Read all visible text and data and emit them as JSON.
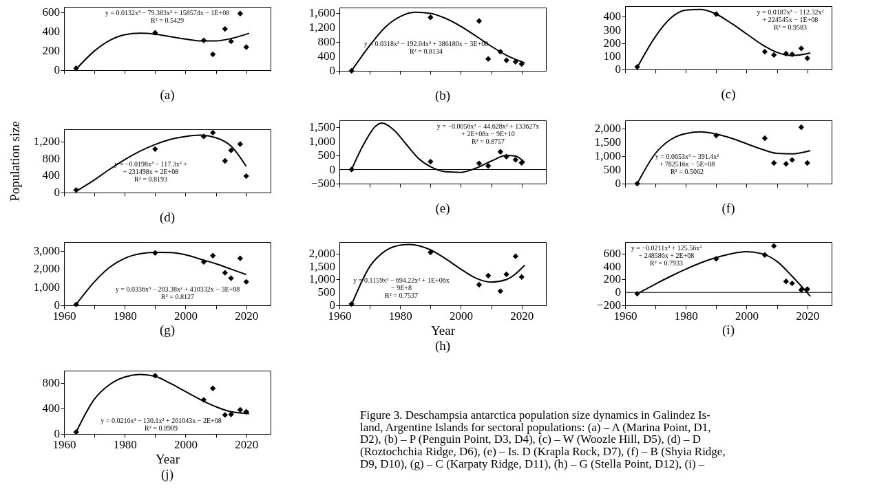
{
  "chart_data": [
    {
      "type": "scatter",
      "title": "(a)",
      "xlim": [
        1960,
        2028
      ],
      "xticks": [
        1960,
        {
          "value": 1970,
          "label": null
        },
        1980,
        {
          "value": 1990,
          "label": null
        },
        2000,
        {
          "value": 2010,
          "label": null
        },
        2020
      ],
      "ylim": [
        0,
        660
      ],
      "yticks": [
        0,
        200,
        400,
        600
      ],
      "tick_labels": "y",
      "annotations": [
        "y = 0.0132x³ − 79.383x² + 158574x − 1E+08",
        "R² = 0.5429"
      ],
      "series": [
        {
          "type": "scatter",
          "marker": "diamond",
          "color": "#000000",
          "x": [
            1964,
            1990,
            2006,
            2009,
            2013,
            2015,
            2018,
            2020
          ],
          "values": [
            20,
            390,
            310,
            165,
            430,
            300,
            590,
            240
          ]
        },
        {
          "type": "line",
          "marker": "none",
          "color": "#000000",
          "x": [
            1964,
            1970,
            1975,
            1980,
            1985,
            1990,
            1995,
            2000,
            2005,
            2010,
            2015,
            2021
          ],
          "values": [
            10,
            200,
            310,
            370,
            385,
            375,
            350,
            325,
            305,
            305,
            330,
            385
          ]
        }
      ]
    },
    {
      "type": "scatter",
      "title": "(b)",
      "xlim": [
        1960,
        2028
      ],
      "xticks": [
        1960,
        {
          "value": 1970,
          "label": null
        },
        1980,
        {
          "value": 1990,
          "label": null
        },
        2000,
        {
          "value": 2010,
          "label": null
        },
        2020
      ],
      "ylim": [
        0,
        1750
      ],
      "yticks": [
        0,
        400,
        800,
        {
          "value": 1200,
          "label": "1,200"
        },
        {
          "value": 1600,
          "label": "1,600"
        }
      ],
      "tick_labels": "y",
      "annotations": [
        "y = 0.0318x³ − 192.04x² + 386180x − 3E+08",
        "R² = 0.8134"
      ],
      "series": [
        {
          "type": "scatter",
          "marker": "diamond",
          "color": "#000000",
          "x": [
            1964,
            1990,
            2006,
            2009,
            2013,
            2015,
            2018,
            2020
          ],
          "values": [
            0,
            1480,
            1380,
            330,
            530,
            290,
            250,
            190
          ]
        },
        {
          "type": "line",
          "marker": "none",
          "color": "#000000",
          "x": [
            1964,
            1970,
            1975,
            1980,
            1985,
            1990,
            1995,
            2000,
            2005,
            2010,
            2015,
            2021
          ],
          "values": [
            0,
            700,
            1200,
            1500,
            1620,
            1590,
            1450,
            1230,
            960,
            680,
            430,
            220
          ]
        }
      ]
    },
    {
      "type": "scatter",
      "title": "(c)",
      "xlim": [
        1960,
        2028
      ],
      "xticks": [
        1960,
        {
          "value": 1970,
          "label": null
        },
        1980,
        {
          "value": 1990,
          "label": null
        },
        2000,
        {
          "value": 2010,
          "label": null
        },
        2020
      ],
      "ylim": [
        0,
        480
      ],
      "yticks": [
        0,
        100,
        200,
        300,
        400
      ],
      "tick_labels": "y",
      "annotations": [
        "y = 0.0187x³ − 112.32x²",
        "+ 224545x − 1E+08",
        "R² = 0.9583"
      ],
      "series": [
        {
          "type": "scatter",
          "marker": "diamond",
          "color": "#000000",
          "x": [
            1964,
            1990,
            2006,
            2009,
            2013,
            2015,
            2018,
            2020
          ],
          "values": [
            20,
            420,
            135,
            110,
            120,
            115,
            160,
            85
          ]
        },
        {
          "type": "line",
          "marker": "none",
          "color": "#000000",
          "x": [
            1964,
            1970,
            1975,
            1980,
            1985,
            1990,
            1995,
            2000,
            2005,
            2010,
            2015,
            2021
          ],
          "values": [
            15,
            250,
            390,
            450,
            455,
            420,
            350,
            270,
            190,
            130,
            105,
            125
          ]
        }
      ]
    },
    {
      "type": "scatter",
      "title": "(d)",
      "ylabel": "Population size",
      "xlim": [
        1960,
        2028
      ],
      "xticks": [
        1960,
        {
          "value": 1970,
          "label": null
        },
        1980,
        {
          "value": 1990,
          "label": null
        },
        2000,
        {
          "value": 2010,
          "label": null
        },
        2020
      ],
      "ylim": [
        0,
        1500
      ],
      "yticks": [
        0,
        400,
        800,
        {
          "value": 1200,
          "label": "1,200"
        }
      ],
      "tick_labels": "y",
      "annotations": [
        "y = −0.0198x³ − 117.3x² +",
        "+ 231498x + 2E+08",
        "R² = 0.8193"
      ],
      "series": [
        {
          "type": "scatter",
          "marker": "diamond",
          "color": "#000000",
          "x": [
            1964,
            1990,
            2006,
            2009,
            2013,
            2015,
            2018,
            2020
          ],
          "values": [
            60,
            1030,
            1330,
            1420,
            750,
            1000,
            1150,
            390
          ]
        },
        {
          "type": "line",
          "marker": "none",
          "color": "#000000",
          "x": [
            1964,
            1970,
            1975,
            1980,
            1985,
            1990,
            1995,
            2000,
            2005,
            2010,
            2015,
            2020
          ],
          "values": [
            30,
            300,
            550,
            780,
            980,
            1140,
            1260,
            1330,
            1360,
            1300,
            1100,
            620
          ]
        }
      ]
    },
    {
      "type": "scatter",
      "title": "(e)",
      "xlim": [
        1960,
        2028
      ],
      "xticks": [
        1960,
        {
          "value": 1970,
          "label": null
        },
        1980,
        {
          "value": 1990,
          "label": null
        },
        2000,
        {
          "value": 2010,
          "label": null
        },
        2020
      ],
      "ylim": [
        -500,
        1750
      ],
      "yticks": [
        {
          "value": -500,
          "label": "−500"
        },
        0,
        500,
        {
          "value": 1000,
          "label": "1,000"
        },
        {
          "value": 1500,
          "label": "1,500"
        }
      ],
      "tick_labels": "y",
      "ref_lines": [
        {
          "axis": "y",
          "value": 0,
          "color": "#000000"
        }
      ],
      "annotations": [
        "y = −0.0056x³ − 44.628x² + 133627x",
        "+ 2E+08x − 9E+10",
        "R² = 0.8757"
      ],
      "series": [
        {
          "type": "scatter",
          "marker": "diamond",
          "color": "#000000",
          "x": [
            1964,
            1990,
            2006,
            2009,
            2013,
            2015,
            2018,
            2020
          ],
          "values": [
            0,
            280,
            220,
            130,
            630,
            460,
            350,
            240
          ]
        },
        {
          "type": "line",
          "marker": "none",
          "color": "#000000",
          "x": [
            1964,
            1968,
            1972,
            1974,
            1978,
            1982,
            1986,
            1990,
            1995,
            2000,
            2005,
            2010,
            2015,
            2018,
            2021
          ],
          "values": [
            0,
            900,
            1550,
            1650,
            1400,
            900,
            400,
            100,
            -80,
            -100,
            50,
            300,
            500,
            480,
            250
          ]
        }
      ]
    },
    {
      "type": "scatter",
      "title": "(f)",
      "xlim": [
        1960,
        2028
      ],
      "xticks": [
        1960,
        {
          "value": 1970,
          "label": null
        },
        1980,
        {
          "value": 1990,
          "label": null
        },
        2000,
        {
          "value": 2010,
          "label": null
        },
        2020
      ],
      "ylim": [
        0,
        2300
      ],
      "yticks": [
        0,
        500,
        {
          "value": 1000,
          "label": "1,000"
        },
        {
          "value": 1500,
          "label": "1,500"
        },
        {
          "value": 2000,
          "label": "2,000"
        }
      ],
      "tick_labels": "y",
      "annotations": [
        "y = 0.0653x³ − 391.4x²",
        "+ 782516x − 5E+08",
        "R² = 0.5062"
      ],
      "series": [
        {
          "type": "scatter",
          "marker": "diamond",
          "color": "#000000",
          "x": [
            1964,
            1990,
            2006,
            2009,
            2013,
            2015,
            2018,
            2020
          ],
          "values": [
            0,
            1750,
            1650,
            750,
            720,
            860,
            2050,
            750
          ]
        },
        {
          "type": "line",
          "marker": "none",
          "color": "#000000",
          "x": [
            1964,
            1970,
            1975,
            1980,
            1985,
            1990,
            1995,
            2000,
            2005,
            2010,
            2015,
            2021
          ],
          "values": [
            0,
            1100,
            1600,
            1820,
            1880,
            1800,
            1650,
            1450,
            1250,
            1100,
            1080,
            1200
          ]
        }
      ]
    },
    {
      "type": "scatter",
      "title": "(g)",
      "xlim": [
        1960,
        2028
      ],
      "xticks": [
        1960,
        {
          "value": 1970,
          "label": null
        },
        1980,
        {
          "value": 1990,
          "label": null
        },
        2000,
        {
          "value": 2010,
          "label": null
        },
        2020
      ],
      "ylim": [
        0,
        3500
      ],
      "yticks": [
        0,
        {
          "value": 1000,
          "label": "1,000"
        },
        {
          "value": 2000,
          "label": "2,000"
        },
        {
          "value": 3000,
          "label": "3,000"
        }
      ],
      "annotations": [
        "y = 0.0336x³ − 203.38x² + 410332x − 3E+08",
        "R² = 0.8127"
      ],
      "series": [
        {
          "type": "scatter",
          "marker": "diamond",
          "color": "#000000",
          "x": [
            1964,
            1990,
            2006,
            2009,
            2013,
            2015,
            2018,
            2020
          ],
          "values": [
            50,
            2900,
            2400,
            2750,
            1800,
            1500,
            2600,
            1300
          ]
        },
        {
          "type": "line",
          "marker": "none",
          "color": "#000000",
          "x": [
            1964,
            1970,
            1975,
            1980,
            1985,
            1990,
            1995,
            2000,
            2005,
            2010,
            2015,
            2020
          ],
          "values": [
            50,
            1300,
            2100,
            2600,
            2850,
            2930,
            2920,
            2800,
            2550,
            2300,
            2000,
            1700
          ]
        }
      ]
    },
    {
      "type": "scatter",
      "title": "(h)",
      "xlabel": "Year",
      "xlim": [
        1960,
        2028
      ],
      "xticks": [
        1960,
        {
          "value": 1970,
          "label": null
        },
        1980,
        {
          "value": 1990,
          "label": null
        },
        2000,
        {
          "value": 2010,
          "label": null
        },
        2020
      ],
      "ylim": [
        0,
        2450
      ],
      "yticks": [
        0,
        500,
        {
          "value": 1000,
          "label": "1,000"
        },
        {
          "value": 1500,
          "label": "1,500"
        },
        {
          "value": 2000,
          "label": "2,000"
        }
      ],
      "annotations": [
        "y = 0.1159x³ − 694.22x² + 1E+06x",
        "− 9E+8",
        "R² = 0.7537"
      ],
      "series": [
        {
          "type": "scatter",
          "marker": "diamond",
          "color": "#000000",
          "x": [
            1964,
            1990,
            2006,
            2009,
            2013,
            2015,
            2018,
            2020
          ],
          "values": [
            50,
            2050,
            800,
            1150,
            550,
            1200,
            1900,
            1100
          ]
        },
        {
          "type": "line",
          "marker": "none",
          "color": "#000000",
          "x": [
            1964,
            1970,
            1975,
            1980,
            1983,
            1990,
            1995,
            2000,
            2005,
            2010,
            2015,
            2021
          ],
          "values": [
            20,
            1500,
            2100,
            2330,
            2360,
            2150,
            1800,
            1400,
            1050,
            900,
            1000,
            1550
          ]
        }
      ]
    },
    {
      "type": "scatter",
      "title": "(i)",
      "xlim": [
        1960,
        2028
      ],
      "xticks": [
        1960,
        {
          "value": 1970,
          "label": null
        },
        1980,
        {
          "value": 1990,
          "label": null
        },
        2000,
        {
          "value": 2010,
          "label": null
        },
        2020
      ],
      "ylim": [
        -200,
        780
      ],
      "yticks": [
        {
          "value": -200,
          "label": "−200"
        },
        0,
        200,
        400,
        600
      ],
      "ref_lines": [
        {
          "axis": "y",
          "value": 0,
          "color": "#000000"
        }
      ],
      "annotations": [
        "y = −0.0211x³ + 125.56x²",
        "− 248586x + 2E+08",
        "R² = 0.7933"
      ],
      "series": [
        {
          "type": "scatter",
          "marker": "diamond",
          "color": "#000000",
          "x": [
            1964,
            1990,
            2006,
            2009,
            2013,
            2015,
            2018,
            2020
          ],
          "values": [
            -20,
            520,
            580,
            720,
            170,
            140,
            40,
            50
          ]
        },
        {
          "type": "line",
          "marker": "none",
          "color": "#000000",
          "x": [
            1964,
            1970,
            1975,
            1980,
            1985,
            1990,
            1995,
            2000,
            2005,
            2010,
            2015,
            2021
          ],
          "values": [
            -20,
            130,
            250,
            360,
            460,
            540,
            600,
            630,
            600,
            480,
            250,
            -60
          ]
        }
      ]
    },
    {
      "type": "scatter",
      "title": "(j)",
      "xlabel": "Year",
      "xlim": [
        1960,
        2028
      ],
      "xticks": [
        1960,
        {
          "value": 1970,
          "label": null
        },
        1980,
        {
          "value": 1990,
          "label": null
        },
        2000,
        {
          "value": 2010,
          "label": null
        },
        2020
      ],
      "ylim": [
        0,
        1000
      ],
      "yticks": [
        0,
        400,
        800
      ],
      "annotations": [
        "y = 0.0216x³ − 130.1x² + 261043x − 2E+08",
        "R² = 0.8909"
      ],
      "series": [
        {
          "type": "scatter",
          "marker": "diamond",
          "color": "#000000",
          "x": [
            1964,
            1990,
            2006,
            2009,
            2013,
            2015,
            2018,
            2020
          ],
          "values": [
            30,
            920,
            540,
            720,
            300,
            310,
            380,
            350
          ]
        },
        {
          "type": "line",
          "marker": "none",
          "color": "#000000",
          "x": [
            1964,
            1970,
            1975,
            1980,
            1985,
            1990,
            1995,
            2000,
            2005,
            2010,
            2015,
            2021
          ],
          "values": [
            30,
            550,
            780,
            900,
            940,
            910,
            800,
            670,
            540,
            430,
            350,
            320
          ]
        }
      ]
    },
    {
      "type": "other",
      "annotations": [
        "Figure 3. Deschampsia antarctica population size dynamics in Galindez Is-",
        "land, Argentine Islands for sectoral populations: (a) – A (Marina Point, D1,",
        "D2), (b) – P (Penguin Point, D3, D4), (c) – W (Woozle Hill, D5), (d) – D",
        "(Roztochchia Ridge, D6), (e) – Is. D (Krapla Rock, D7), (f) – B (Shyia Ridge,",
        "D9, D10), (g) – C (Karpaty Ridge, D11), (h) – G (Stella Point, D12), (i) –"
      ]
    }
  ]
}
